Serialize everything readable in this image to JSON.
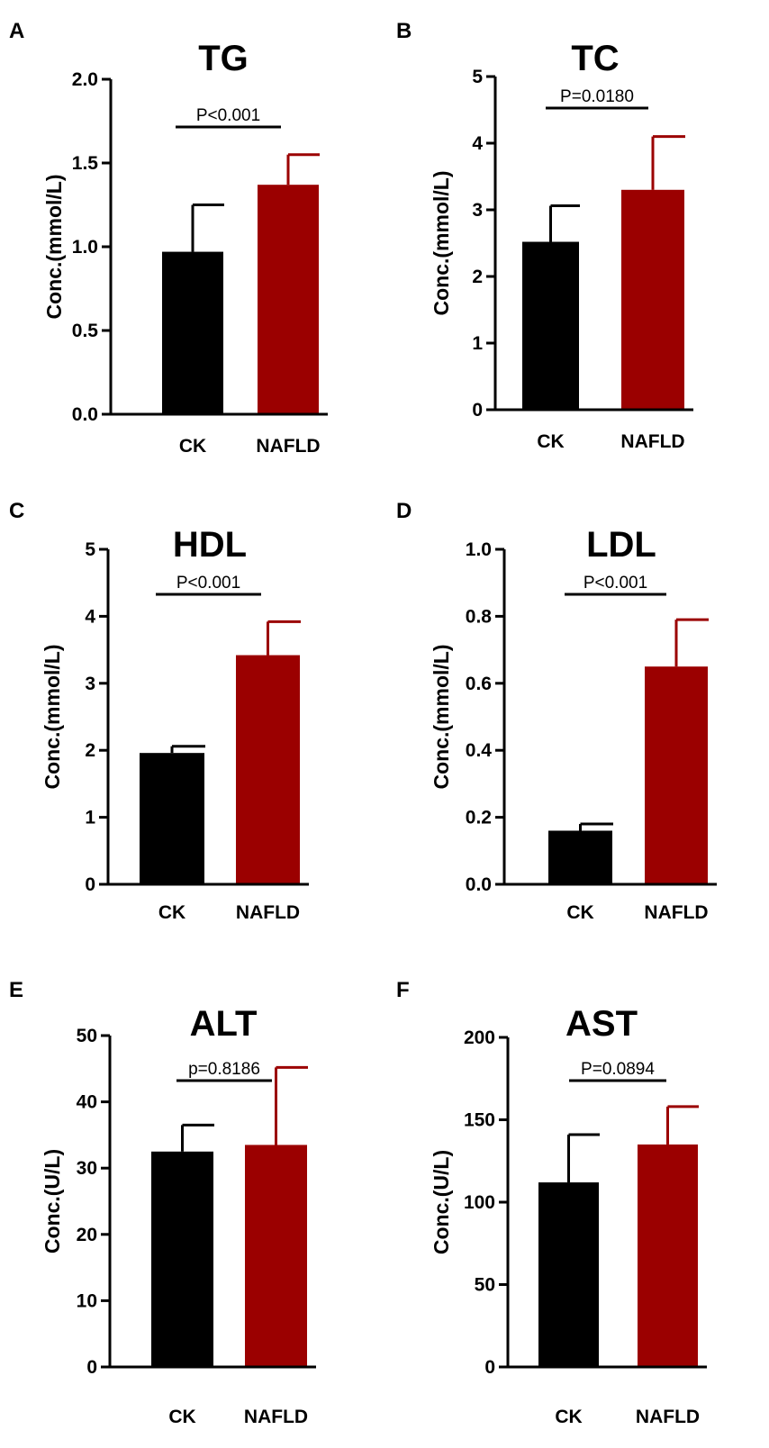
{
  "colors": {
    "ck": "#000000",
    "nafld": "#9b0000",
    "axis": "#000000"
  },
  "chart_data": [
    {
      "panel": "A",
      "type": "bar",
      "title": "TG",
      "ylabel": "Conc.(mmol/L)",
      "xlabel": "",
      "categories": [
        "CK",
        "NAFLD"
      ],
      "values": [
        0.97,
        1.37
      ],
      "errors": [
        0.28,
        0.18
      ],
      "ylim": [
        0,
        2.0
      ],
      "yticks": [
        0.0,
        0.5,
        1.0,
        1.5,
        2.0
      ],
      "ytick_labels": [
        "0.0",
        "0.5",
        "1.0",
        "1.5",
        "2.0"
      ],
      "pvalue": "P<0.001"
    },
    {
      "panel": "B",
      "type": "bar",
      "title": "TC",
      "ylabel": "Conc.(mmol/L)",
      "xlabel": "",
      "categories": [
        "CK",
        "NAFLD"
      ],
      "values": [
        2.52,
        3.3
      ],
      "errors": [
        0.54,
        0.8
      ],
      "ylim": [
        0,
        5
      ],
      "yticks": [
        0,
        1,
        2,
        3,
        4,
        5
      ],
      "ytick_labels": [
        "0",
        "1",
        "2",
        "3",
        "4",
        "5"
      ],
      "pvalue": "P=0.0180"
    },
    {
      "panel": "C",
      "type": "bar",
      "title": "HDL",
      "ylabel": "Conc.(mmol/L)",
      "xlabel": "",
      "categories": [
        "CK",
        "NAFLD"
      ],
      "values": [
        1.96,
        3.42
      ],
      "errors": [
        0.1,
        0.5
      ],
      "ylim": [
        0,
        5
      ],
      "yticks": [
        0,
        1,
        2,
        3,
        4,
        5
      ],
      "ytick_labels": [
        "0",
        "1",
        "2",
        "3",
        "4",
        "5"
      ],
      "pvalue": "P<0.001"
    },
    {
      "panel": "D",
      "type": "bar",
      "title": "LDL",
      "ylabel": "Conc.(mmol/L)",
      "xlabel": "",
      "categories": [
        "CK",
        "NAFLD"
      ],
      "values": [
        0.16,
        0.65
      ],
      "errors": [
        0.02,
        0.14
      ],
      "ylim": [
        0,
        1.0
      ],
      "yticks": [
        0.0,
        0.2,
        0.4,
        0.6,
        0.8,
        1.0
      ],
      "ytick_labels": [
        "0.0",
        "0.2",
        "0.4",
        "0.6",
        "0.8",
        "1.0"
      ],
      "pvalue": "P<0.001"
    },
    {
      "panel": "E",
      "type": "bar",
      "title": "ALT",
      "ylabel": "Conc.(U/L)",
      "xlabel": "",
      "categories": [
        "CK",
        "NAFLD"
      ],
      "values": [
        32.5,
        33.5
      ],
      "errors": [
        4.0,
        11.7
      ],
      "ylim": [
        0,
        50
      ],
      "yticks": [
        0,
        10,
        20,
        30,
        40,
        50
      ],
      "ytick_labels": [
        "0",
        "10",
        "20",
        "30",
        "40",
        "50"
      ],
      "pvalue": "p=0.8186"
    },
    {
      "panel": "F",
      "type": "bar",
      "title": "AST",
      "ylabel": "Conc.(U/L)",
      "xlabel": "",
      "categories": [
        "CK",
        "NAFLD"
      ],
      "values": [
        112,
        135
      ],
      "errors": [
        29,
        23
      ],
      "ylim": [
        0,
        200
      ],
      "yticks": [
        0,
        50,
        100,
        150,
        200
      ],
      "ytick_labels": [
        "0",
        "50",
        "100",
        "150",
        "200"
      ],
      "pvalue": "P=0.0894"
    }
  ]
}
